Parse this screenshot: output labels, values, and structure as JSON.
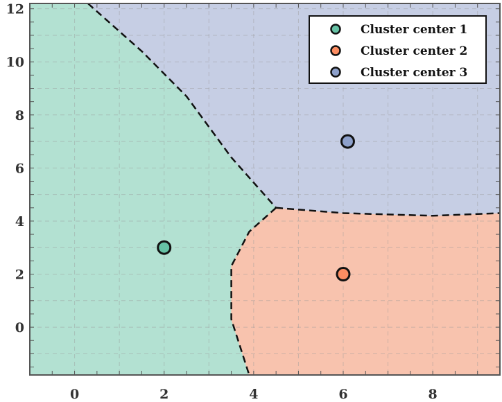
{
  "chart_data": {
    "type": "scatter",
    "xlim": [
      -1,
      9.5
    ],
    "ylim": [
      -1.8,
      12.2
    ],
    "x_ticks": [
      0,
      2,
      4,
      6,
      8
    ],
    "y_ticks": [
      0,
      2,
      4,
      6,
      8,
      10,
      12
    ],
    "x_tick_labels": [
      "0",
      "2",
      "4",
      "6",
      "8"
    ],
    "y_tick_labels": [
      "0",
      "2",
      "4",
      "6",
      "8",
      "10",
      "12"
    ],
    "grid": true,
    "legend_position": "top-right",
    "series": [
      {
        "name": "Cluster center 1",
        "x": [
          2.0
        ],
        "y": [
          3.0
        ],
        "color": "#66c2a5",
        "region_color": "#b3e1d2"
      },
      {
        "name": "Cluster center 2",
        "x": [
          6.0
        ],
        "y": [
          2.0
        ],
        "color": "#fc8d62",
        "region_color": "#f8c3ae"
      },
      {
        "name": "Cluster center 3",
        "x": [
          6.1
        ],
        "y": [
          7.0
        ],
        "color": "#8da0cb",
        "region_color": "#c6cee4"
      }
    ],
    "boundaries": {
      "triple_point": [
        4.5,
        4.5
      ],
      "boundary_1_3": [
        [
          0.3,
          12.2
        ],
        [
          1.5,
          10.4
        ],
        [
          2.5,
          8.7
        ],
        [
          3.5,
          6.4
        ],
        [
          4.5,
          4.5
        ]
      ],
      "boundary_1_2": [
        [
          4.5,
          4.5
        ],
        [
          3.9,
          3.6
        ],
        [
          3.5,
          2.3
        ],
        [
          3.5,
          0.3
        ],
        [
          3.9,
          -1.8
        ]
      ],
      "boundary_2_3": [
        [
          4.5,
          4.5
        ],
        [
          6.0,
          4.3
        ],
        [
          8.0,
          4.2
        ],
        [
          9.5,
          4.3
        ]
      ]
    }
  }
}
